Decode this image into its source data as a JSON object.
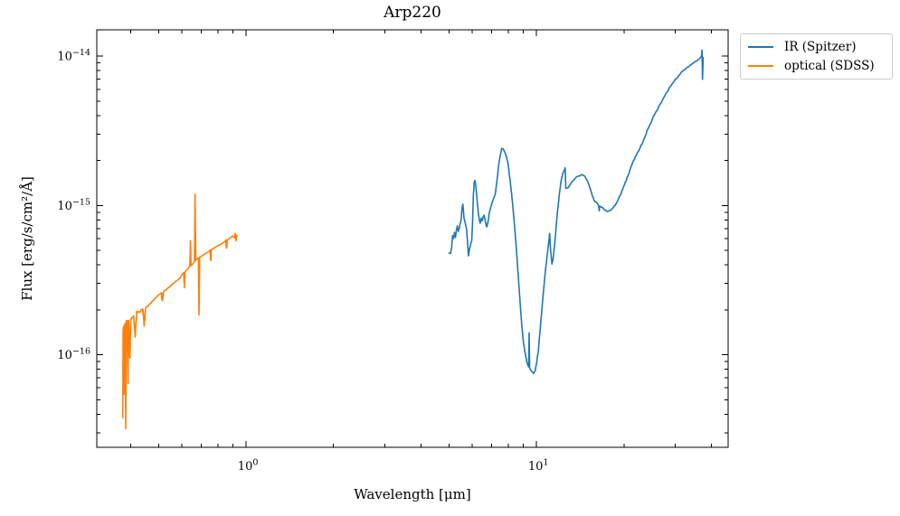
{
  "chart_data": {
    "type": "line",
    "title": "Arp220",
    "xlabel": "Wavelength [μm]",
    "ylabel": "Flux [erg/s/cm²/Å]",
    "xscale": "log",
    "yscale": "log",
    "grid": false,
    "legend_position": "outside-upper-right",
    "xlim": [
      0.306,
      45.7
    ],
    "ylim": [
      2.4e-17,
      1.5e-14
    ],
    "x_major_ticks": [
      {
        "value": 1,
        "base": "10",
        "exp": "0"
      },
      {
        "value": 10,
        "base": "10",
        "exp": "1"
      }
    ],
    "x_minor_ticks": [
      0.4,
      0.5,
      0.6,
      0.7,
      0.8,
      0.9,
      2,
      3,
      4,
      5,
      6,
      7,
      8,
      9,
      20,
      30,
      40
    ],
    "y_major_ticks": [
      {
        "value": 1e-14,
        "base": "10",
        "exp": "−14"
      },
      {
        "value": 1e-15,
        "base": "10",
        "exp": "−15"
      },
      {
        "value": 1e-16,
        "base": "10",
        "exp": "−16"
      }
    ],
    "y_minor_ticks": [
      9e-15,
      8e-15,
      7e-15,
      6e-15,
      5e-15,
      4e-15,
      3e-15,
      2e-15,
      9e-16,
      8e-16,
      7e-16,
      6e-16,
      5e-16,
      4e-16,
      3e-16,
      2e-16,
      9e-17,
      8e-17,
      7e-17,
      6e-17,
      5e-17,
      4e-17,
      3e-17
    ],
    "series": [
      {
        "name": "IR (Spitzer)",
        "color": "#1f77b4",
        "linewidth": 1.6,
        "noise_dex": 0.006,
        "noise_seed": 11,
        "points": [
          [
            5.0,
            4.8e-16
          ],
          [
            5.06,
            4.77e-16
          ],
          [
            5.1,
            5.2e-16
          ],
          [
            5.14,
            6.3e-16
          ],
          [
            5.18,
            6e-16
          ],
          [
            5.22,
            6.6e-16
          ],
          [
            5.26,
            6.1e-16
          ],
          [
            5.3,
            6.9e-16
          ],
          [
            5.34,
            7.3e-16
          ],
          [
            5.38,
            6.7e-16
          ],
          [
            5.42,
            7e-16
          ],
          [
            5.46,
            7.6e-16
          ],
          [
            5.5,
            8e-16
          ],
          [
            5.54,
            9.6e-16
          ],
          [
            5.58,
            1.02e-15
          ],
          [
            5.62,
            8.4e-16
          ],
          [
            5.66,
            7.8e-16
          ],
          [
            5.7,
            7.4e-16
          ],
          [
            5.74,
            7e-16
          ],
          [
            5.78,
            5.9e-16
          ],
          [
            5.83,
            4.6e-16
          ],
          [
            5.88,
            5.1e-16
          ],
          [
            5.93,
            5.5e-16
          ],
          [
            5.98,
            5.8e-16
          ],
          [
            6.02,
            7.5e-16
          ],
          [
            6.06,
            1.15e-15
          ],
          [
            6.1,
            1.42e-15
          ],
          [
            6.14,
            1.47e-15
          ],
          [
            6.18,
            1.35e-15
          ],
          [
            6.22,
            1.18e-15
          ],
          [
            6.26,
            1.02e-15
          ],
          [
            6.3,
            9e-16
          ],
          [
            6.35,
            8e-16
          ],
          [
            6.4,
            7.6e-16
          ],
          [
            6.45,
            8.2e-16
          ],
          [
            6.5,
            7.9e-16
          ],
          [
            6.55,
            8.4e-16
          ],
          [
            6.6,
            8.6e-16
          ],
          [
            6.65,
            8e-16
          ],
          [
            6.7,
            7.5e-16
          ],
          [
            6.75,
            7.2e-16
          ],
          [
            6.8,
            7.7e-16
          ],
          [
            6.85,
            8.4e-16
          ],
          [
            6.9,
            9.2e-16
          ],
          [
            6.95,
            9.7e-16
          ],
          [
            7.0,
            1.01e-15
          ],
          [
            7.05,
            1.06e-15
          ],
          [
            7.1,
            1.1e-15
          ],
          [
            7.15,
            1.14e-15
          ],
          [
            7.2,
            1.18e-15
          ],
          [
            7.25,
            1.3e-15
          ],
          [
            7.3,
            1.45e-15
          ],
          [
            7.35,
            1.6e-15
          ],
          [
            7.4,
            1.85e-15
          ],
          [
            7.45,
            2e-15
          ],
          [
            7.5,
            2.15e-15
          ],
          [
            7.55,
            2.3e-15
          ],
          [
            7.6,
            2.41e-15
          ],
          [
            7.65,
            2.4e-15
          ],
          [
            7.7,
            2.37e-15
          ],
          [
            7.75,
            2.3e-15
          ],
          [
            7.8,
            2.25e-15
          ],
          [
            7.9,
            2.1e-15
          ],
          [
            8.0,
            1.85e-15
          ],
          [
            8.1,
            1.5e-15
          ],
          [
            8.2,
            1.22e-15
          ],
          [
            8.3,
            9.6e-16
          ],
          [
            8.4,
            7.4e-16
          ],
          [
            8.5,
            5.5e-16
          ],
          [
            8.6,
            4e-16
          ],
          [
            8.7,
            2.9e-16
          ],
          [
            8.8,
            2.1e-16
          ],
          [
            8.9,
            1.57e-16
          ],
          [
            9.0,
            1.24e-16
          ],
          [
            9.1,
            1.07e-16
          ],
          [
            9.2,
            9.6e-17
          ],
          [
            9.3,
            8.7e-17
          ],
          [
            9.4,
            8.3e-17
          ],
          [
            9.43,
            1.4e-16
          ],
          [
            9.47,
            8.2e-17
          ],
          [
            9.55,
            7.9e-17
          ],
          [
            9.65,
            7.7e-17
          ],
          [
            9.77,
            7.5e-17
          ],
          [
            9.9,
            7.8e-17
          ],
          [
            10.0,
            8.7e-17
          ],
          [
            10.15,
            1.07e-16
          ],
          [
            10.3,
            1.5e-16
          ],
          [
            10.45,
            2.07e-16
          ],
          [
            10.6,
            2.85e-16
          ],
          [
            10.75,
            3.75e-16
          ],
          [
            10.9,
            4.77e-16
          ],
          [
            11.0,
            5.5e-16
          ],
          [
            11.1,
            6.5e-16
          ],
          [
            11.17,
            5.2e-16
          ],
          [
            11.3,
            4.05e-16
          ],
          [
            11.4,
            4.35e-16
          ],
          [
            11.55,
            5.5e-16
          ],
          [
            11.7,
            7.45e-16
          ],
          [
            11.85,
            9.6e-16
          ],
          [
            12.0,
            1.22e-15
          ],
          [
            12.15,
            1.45e-15
          ],
          [
            12.3,
            1.62e-15
          ],
          [
            12.45,
            1.72e-15
          ],
          [
            12.55,
            1.79e-15
          ],
          [
            12.62,
            1.3e-15
          ],
          [
            12.8,
            1.31e-15
          ],
          [
            13.0,
            1.36e-15
          ],
          [
            13.3,
            1.45e-15
          ],
          [
            13.6,
            1.52e-15
          ],
          [
            13.9,
            1.57e-15
          ],
          [
            14.3,
            1.61e-15
          ],
          [
            14.7,
            1.56e-15
          ],
          [
            15.0,
            1.45e-15
          ],
          [
            15.3,
            1.3e-15
          ],
          [
            15.6,
            1.15e-15
          ],
          [
            15.9,
            1.06e-15
          ],
          [
            16.2,
            1.03e-15
          ],
          [
            16.38,
            9.9e-16
          ],
          [
            16.44,
            9.2e-16
          ],
          [
            16.5,
            9.9e-16
          ],
          [
            16.8,
            9.7e-16
          ],
          [
            17.1,
            9.4e-16
          ],
          [
            17.6,
            9.1e-16
          ],
          [
            18.0,
            9.25e-16
          ],
          [
            18.4,
            9.7e-16
          ],
          [
            18.8,
            1.03e-15
          ],
          [
            19.2,
            1.12e-15
          ],
          [
            19.6,
            1.22e-15
          ],
          [
            20.1,
            1.38e-15
          ],
          [
            20.6,
            1.56e-15
          ],
          [
            21.1,
            1.79e-15
          ],
          [
            21.6,
            2e-15
          ],
          [
            22.0,
            2.15e-15
          ],
          [
            22.5,
            2.32e-15
          ],
          [
            23.0,
            2.55e-15
          ],
          [
            23.7,
            2.93e-15
          ],
          [
            24.4,
            3.37e-15
          ],
          [
            25.1,
            3.82e-15
          ],
          [
            25.9,
            4.28e-15
          ],
          [
            26.7,
            4.79e-15
          ],
          [
            27.4,
            5.27e-15
          ],
          [
            28.1,
            5.72e-15
          ],
          [
            28.8,
            6.22e-15
          ],
          [
            29.6,
            6.67e-15
          ],
          [
            30.3,
            7.05e-15
          ],
          [
            31.0,
            7.45e-15
          ],
          [
            31.7,
            7.87e-15
          ],
          [
            32.4,
            8.1e-15
          ],
          [
            33.1,
            8.44e-15
          ],
          [
            33.8,
            8.68e-15
          ],
          [
            34.5,
            8.92e-15
          ],
          [
            35.2,
            9.2e-15
          ],
          [
            35.9,
            9.4e-15
          ],
          [
            36.4,
            9.6e-15
          ],
          [
            36.8,
            9.85e-15
          ],
          [
            37.0,
            1e-14
          ],
          [
            37.15,
            1.1e-14
          ],
          [
            37.3,
            7e-15
          ],
          [
            37.5,
            9.8e-15
          ]
        ]
      },
      {
        "name": "optical (SDSS)",
        "color": "#ff7f0e",
        "linewidth": 1.6,
        "noise_dex": 0.03,
        "noise_seed": 7,
        "points": [
          [
            0.376,
            3.8e-17
          ],
          [
            0.377,
            1.45e-16
          ],
          [
            0.379,
            1.55e-16
          ],
          [
            0.38,
            5.5e-17
          ],
          [
            0.381,
            1.5e-16
          ],
          [
            0.383,
            1.62e-16
          ],
          [
            0.385,
            3.2e-17
          ],
          [
            0.387,
            1.65e-16
          ],
          [
            0.39,
            1.68e-16
          ],
          [
            0.392,
            6.5e-17
          ],
          [
            0.394,
            1.7e-16
          ],
          [
            0.398,
            9.5e-17
          ],
          [
            0.401,
            1.72e-16
          ],
          [
            0.405,
            1.78e-16
          ],
          [
            0.41,
            1.82e-16
          ],
          [
            0.415,
            1.35e-16
          ],
          [
            0.42,
            1.9e-16
          ],
          [
            0.425,
            1.95e-16
          ],
          [
            0.43,
            1.92e-16
          ],
          [
            0.435,
            2e-16
          ],
          [
            0.44,
            2.02e-16
          ],
          [
            0.445,
            1.6e-16
          ],
          [
            0.45,
            2.05e-16
          ],
          [
            0.455,
            2.1e-16
          ],
          [
            0.46,
            2.12e-16
          ],
          [
            0.465,
            2.18e-16
          ],
          [
            0.47,
            2.22e-16
          ],
          [
            0.475,
            2.28e-16
          ],
          [
            0.48,
            2.32e-16
          ],
          [
            0.485,
            2.38e-16
          ],
          [
            0.49,
            2.42e-16
          ],
          [
            0.495,
            2.48e-16
          ],
          [
            0.5,
            2.52e-16
          ],
          [
            0.505,
            2.55e-16
          ],
          [
            0.51,
            2.6e-16
          ],
          [
            0.515,
            2.3e-16
          ],
          [
            0.52,
            2.65e-16
          ],
          [
            0.525,
            2.7e-16
          ],
          [
            0.53,
            2.72e-16
          ],
          [
            0.535,
            2.78e-16
          ],
          [
            0.54,
            2.82e-16
          ],
          [
            0.545,
            2.85e-16
          ],
          [
            0.55,
            2.9e-16
          ],
          [
            0.555,
            2.95e-16
          ],
          [
            0.56,
            3e-16
          ],
          [
            0.565,
            3.02e-16
          ],
          [
            0.57,
            3.08e-16
          ],
          [
            0.575,
            3.12e-16
          ],
          [
            0.58,
            3.15e-16
          ],
          [
            0.585,
            3.2e-16
          ],
          [
            0.59,
            3.25e-16
          ],
          [
            0.595,
            3.3e-16
          ],
          [
            0.6,
            3.42e-16
          ],
          [
            0.605,
            3.5e-16
          ],
          [
            0.61,
            3.55e-16
          ],
          [
            0.613,
            2.9e-16
          ],
          [
            0.616,
            3.6e-16
          ],
          [
            0.62,
            3.65e-16
          ],
          [
            0.625,
            3.7e-16
          ],
          [
            0.63,
            3.75e-16
          ],
          [
            0.635,
            3.85e-16
          ],
          [
            0.64,
            3.9e-16
          ],
          [
            0.643,
            5.8e-16
          ],
          [
            0.646,
            3.95e-16
          ],
          [
            0.65,
            4e-16
          ],
          [
            0.655,
            4.05e-16
          ],
          [
            0.66,
            4.15e-16
          ],
          [
            0.664,
            4.2e-16
          ],
          [
            0.667,
            1.19e-15
          ],
          [
            0.671,
            4.3e-16
          ],
          [
            0.675,
            4.35e-16
          ],
          [
            0.68,
            4.4e-16
          ],
          [
            0.685,
            4.45e-16
          ],
          [
            0.688,
            1.85e-16
          ],
          [
            0.692,
            4.5e-16
          ],
          [
            0.7,
            4.55e-16
          ],
          [
            0.71,
            4.65e-16
          ],
          [
            0.72,
            4.72e-16
          ],
          [
            0.73,
            4.8e-16
          ],
          [
            0.74,
            4.88e-16
          ],
          [
            0.75,
            4.95e-16
          ],
          [
            0.755,
            4.3e-16
          ],
          [
            0.76,
            5.05e-16
          ],
          [
            0.77,
            5.15e-16
          ],
          [
            0.78,
            5.22e-16
          ],
          [
            0.79,
            5.3e-16
          ],
          [
            0.8,
            5.38e-16
          ],
          [
            0.81,
            5.45e-16
          ],
          [
            0.82,
            5.52e-16
          ],
          [
            0.83,
            5.6e-16
          ],
          [
            0.84,
            5.68e-16
          ],
          [
            0.85,
            5.78e-16
          ],
          [
            0.855,
            5.2e-16
          ],
          [
            0.86,
            5.85e-16
          ],
          [
            0.87,
            5.95e-16
          ],
          [
            0.88,
            6.05e-16
          ],
          [
            0.89,
            6.15e-16
          ],
          [
            0.9,
            6.25e-16
          ],
          [
            0.91,
            6.1e-16
          ],
          [
            0.917,
            6.5e-16
          ],
          [
            0.924,
            5.8e-16
          ],
          [
            0.93,
            6.2e-16
          ]
        ]
      }
    ]
  }
}
